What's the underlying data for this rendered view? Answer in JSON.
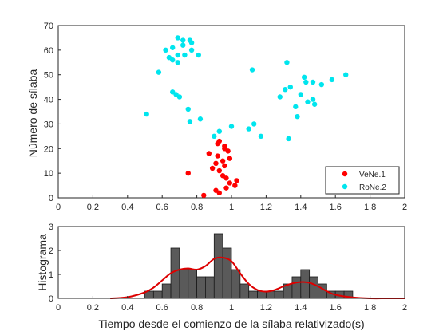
{
  "chart_data": [
    {
      "type": "scatter",
      "ylabel": "Número de sílaba",
      "xlim": [
        0,
        2
      ],
      "ylim": [
        0,
        70
      ],
      "x_ticks": [
        "0",
        "0.2",
        "0.4",
        "0.6",
        "0.8",
        "1",
        "1.2",
        "1.4",
        "1.6",
        "1.8",
        "2"
      ],
      "y_ticks": [
        "0",
        "10",
        "20",
        "30",
        "40",
        "50",
        "60",
        "70"
      ],
      "legend_position": "bottom-right",
      "series": [
        {
          "name": "VeNe.1",
          "color": "#ff0000",
          "points": [
            [
              0.84,
              1
            ],
            [
              0.93,
              2
            ],
            [
              0.91,
              3
            ],
            [
              0.97,
              4
            ],
            [
              1.02,
              5
            ],
            [
              0.99,
              6
            ],
            [
              1.03,
              7
            ],
            [
              0.97,
              8
            ],
            [
              0.95,
              9
            ],
            [
              0.75,
              10
            ],
            [
              0.93,
              11
            ],
            [
              0.89,
              12
            ],
            [
              0.96,
              13
            ],
            [
              0.91,
              14
            ],
            [
              0.95,
              15
            ],
            [
              0.99,
              16
            ],
            [
              0.92,
              17
            ],
            [
              0.87,
              18
            ],
            [
              0.98,
              19
            ],
            [
              0.96,
              20
            ],
            [
              0.96,
              21
            ],
            [
              0.92,
              22
            ],
            [
              0.93,
              23
            ]
          ]
        },
        {
          "name": "RoNe.2",
          "color": "#00e5ee",
          "points": [
            [
              0.9,
              25
            ],
            [
              1.17,
              25
            ],
            [
              0.93,
              27
            ],
            [
              1.0,
              29
            ],
            [
              1.1,
              28
            ],
            [
              1.13,
              30
            ],
            [
              1.33,
              24
            ],
            [
              0.76,
              31
            ],
            [
              0.82,
              32
            ],
            [
              0.51,
              34
            ],
            [
              0.75,
              36
            ],
            [
              1.38,
              33
            ],
            [
              1.37,
              37
            ],
            [
              1.44,
              39
            ],
            [
              1.48,
              38
            ],
            [
              1.47,
              40
            ],
            [
              1.4,
              42
            ],
            [
              1.28,
              41
            ],
            [
              1.31,
              44
            ],
            [
              1.34,
              45
            ],
            [
              1.43,
              47
            ],
            [
              1.47,
              47
            ],
            [
              1.52,
              46
            ],
            [
              1.58,
              48
            ],
            [
              1.66,
              50
            ],
            [
              1.42,
              49
            ],
            [
              1.12,
              52
            ],
            [
              1.32,
              55
            ],
            [
              0.58,
              51
            ],
            [
              0.68,
              42
            ],
            [
              0.7,
              41
            ],
            [
              0.66,
              43
            ],
            [
              0.69,
              55
            ],
            [
              0.66,
              56
            ],
            [
              0.69,
              58
            ],
            [
              0.64,
              57
            ],
            [
              0.62,
              60
            ],
            [
              0.66,
              61
            ],
            [
              0.73,
              58
            ],
            [
              0.77,
              60
            ],
            [
              0.81,
              58
            ],
            [
              0.72,
              62
            ],
            [
              0.77,
              63
            ],
            [
              0.76,
              64
            ],
            [
              0.69,
              65
            ],
            [
              0.72,
              64
            ]
          ]
        }
      ]
    },
    {
      "type": "bar",
      "ylabel": "Histograma",
      "xlabel": "Tiempo desde el comienzo de la sílaba relativizado(s)",
      "xlim": [
        0,
        2
      ],
      "ylim": [
        0,
        3
      ],
      "x_ticks": [
        "0",
        "0.2",
        "0.4",
        "0.6",
        "0.8",
        "1",
        "1.2",
        "1.4",
        "1.6",
        "1.8",
        "2"
      ],
      "y_ticks": [
        "0",
        "1",
        "2",
        "3"
      ],
      "bin_width": 0.05,
      "bins": [
        [
          0.5,
          0.3
        ],
        [
          0.55,
          0.3
        ],
        [
          0.6,
          0.6
        ],
        [
          0.65,
          2.1
        ],
        [
          0.7,
          1.2
        ],
        [
          0.75,
          1.2
        ],
        [
          0.8,
          0.9
        ],
        [
          0.85,
          0.9
        ],
        [
          0.9,
          2.7
        ],
        [
          0.95,
          2.1
        ],
        [
          1.0,
          1.2
        ],
        [
          1.05,
          0.6
        ],
        [
          1.1,
          0.3
        ],
        [
          1.15,
          0.3
        ],
        [
          1.2,
          0.3
        ],
        [
          1.25,
          0.3
        ],
        [
          1.3,
          0.6
        ],
        [
          1.35,
          0.9
        ],
        [
          1.4,
          1.2
        ],
        [
          1.45,
          0.9
        ],
        [
          1.5,
          0.6
        ],
        [
          1.55,
          0.3
        ],
        [
          1.6,
          0.3
        ],
        [
          1.65,
          0.3
        ]
      ],
      "bar_color": "#5a5a5a",
      "density_curve": {
        "color": "#dd0000",
        "x": [
          0.3,
          0.4,
          0.5,
          0.55,
          0.6,
          0.65,
          0.7,
          0.75,
          0.8,
          0.85,
          0.9,
          0.95,
          1.0,
          1.05,
          1.1,
          1.15,
          1.2,
          1.25,
          1.3,
          1.35,
          1.4,
          1.45,
          1.5,
          1.55,
          1.6,
          1.7,
          1.8,
          1.9,
          2.0
        ],
        "y": [
          0.0,
          0.05,
          0.25,
          0.45,
          0.75,
          1.05,
          1.2,
          1.25,
          1.2,
          1.35,
          1.65,
          1.7,
          1.55,
          1.05,
          0.6,
          0.35,
          0.28,
          0.35,
          0.5,
          0.62,
          0.68,
          0.65,
          0.5,
          0.3,
          0.15,
          0.04,
          0.0,
          0.0,
          0.0
        ]
      }
    }
  ]
}
